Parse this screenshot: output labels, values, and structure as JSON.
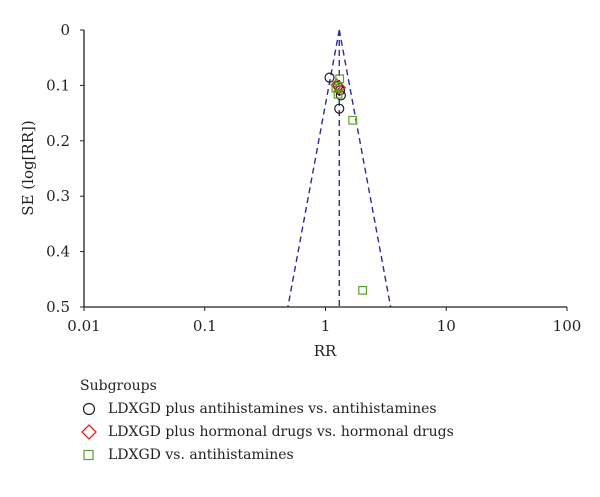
{
  "chart_data": {
    "type": "scatter",
    "title": "",
    "xlabel": "RR",
    "ylabel": "SE (log[RR])",
    "x_scale": "log",
    "xlim": [
      0.01,
      100
    ],
    "ylim": [
      0,
      0.5
    ],
    "y_inverted": true,
    "x_ticks": [
      "0.01",
      "0.1",
      "1",
      "10",
      "100"
    ],
    "y_ticks": [
      "0",
      "0.1",
      "0.2",
      "0.3",
      "0.4",
      "0.5"
    ],
    "funnel": {
      "pooled_rr": 1.3,
      "color": "#2b2b9b",
      "style": "dashed"
    },
    "legend_title": "Subgroups",
    "legend_position": "bottom-left",
    "series": [
      {
        "name": "LDXGD plus antihistamines vs. antihistamines",
        "marker": "circle",
        "color": "#231f20",
        "points": [
          [
            1.08,
            0.086
          ],
          [
            1.27,
            0.101
          ],
          [
            1.32,
            0.109
          ],
          [
            1.34,
            0.118
          ],
          [
            1.3,
            0.142
          ]
        ]
      },
      {
        "name": "LDXGD plus hormonal drugs vs. hormonal drugs",
        "marker": "diamond",
        "color": "#e2231a",
        "points": [
          [
            1.24,
            0.099
          ],
          [
            1.31,
            0.104
          ]
        ]
      },
      {
        "name": "LDXGD vs. antihistamines",
        "marker": "square",
        "color": "#5aa02c",
        "points": [
          [
            1.31,
            0.088
          ],
          [
            1.22,
            0.105
          ],
          [
            1.27,
            0.116
          ],
          [
            1.68,
            0.163
          ],
          [
            2.03,
            0.47
          ]
        ]
      }
    ]
  }
}
